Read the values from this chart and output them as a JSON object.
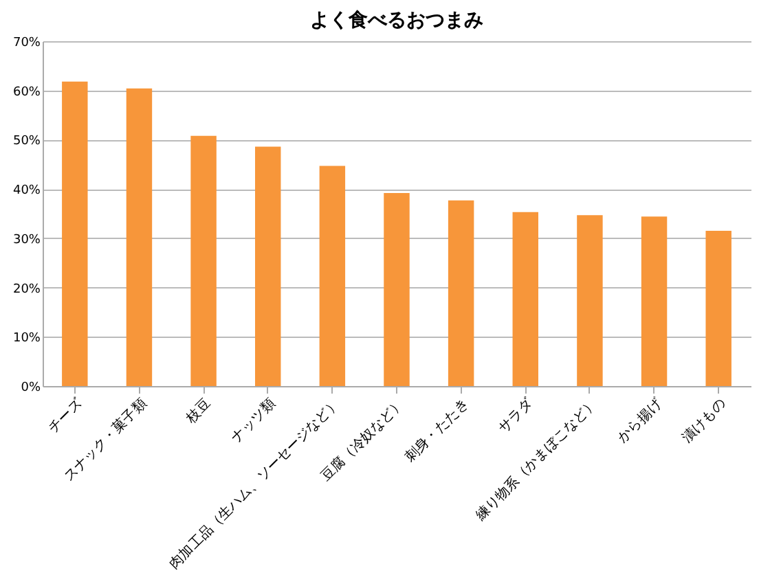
{
  "chart_data": {
    "type": "bar",
    "title": "よく食べるおつまみ",
    "categories": [
      "チーズ",
      "スナック・菓子類",
      "枝豆",
      "ナッツ類",
      "肉加工品（生ハム、ソーセージなど）",
      "豆腐（冷奴など）",
      "刺身・たたき",
      "サラダ",
      "練り物系（かまぼこなど）",
      "から揚げ",
      "漬けもの"
    ],
    "values": [
      61.8,
      60.4,
      50.8,
      48.6,
      44.7,
      39.2,
      37.7,
      35.3,
      34.7,
      34.4,
      31.5
    ],
    "color": "#f7963a",
    "ylim": [
      0,
      70
    ],
    "yticks": [
      {
        "value": 0,
        "label": "0%"
      },
      {
        "value": 10,
        "label": "10%"
      },
      {
        "value": 20,
        "label": "20%"
      },
      {
        "value": 30,
        "label": "30%"
      },
      {
        "value": 40,
        "label": "40%"
      },
      {
        "value": 50,
        "label": "50%"
      },
      {
        "value": 60,
        "label": "60%"
      },
      {
        "value": 70,
        "label": "70%"
      }
    ],
    "grid": "y"
  }
}
